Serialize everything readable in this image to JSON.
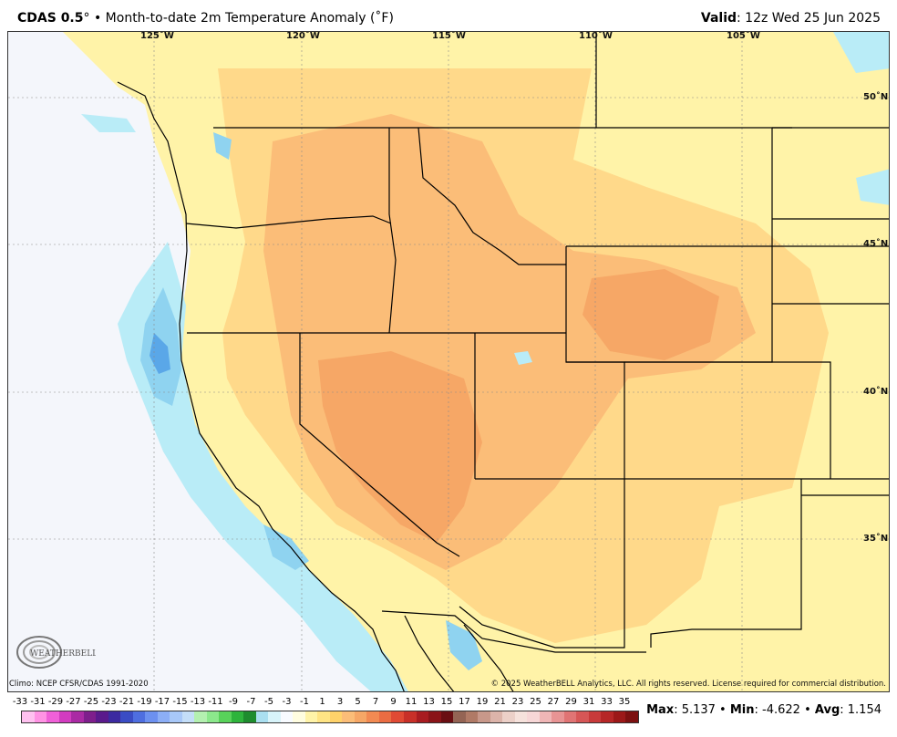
{
  "header": {
    "product": "CDAS 0.5",
    "degree_symbol": "°",
    "bullet": "•",
    "description": "Month-to-date 2m Temperature Anomaly (˚F)",
    "valid_label": "Valid",
    "valid_value": ": 12z Wed 25 Jun 2025"
  },
  "map": {
    "longitude_labels": [
      "125˚W",
      "120˚W",
      "115˚W",
      "110˚W",
      "105˚W"
    ],
    "latitude_labels": [
      "50˚N",
      "45˚N",
      "40˚N",
      "35˚N"
    ],
    "logo_text": "WEATHERBELL",
    "colors": {
      "background": "#f4f6fb",
      "warm_light": "#fff3a8",
      "warm_mid": "#ffd98a",
      "warm": "#fbbd78",
      "warm_strong": "#f6a766",
      "cool_light": "#b9ecf7",
      "cool_mid": "#8fd3f0",
      "cool": "#5aa7e8",
      "boundary": "#000000",
      "grid": "#8a8a8a"
    }
  },
  "footer": {
    "climo": "Climo: NCEP CFSR/CDAS 1991-2020",
    "copyright": "© 2025 WeatherBELL Analytics, LLC. All rights reserved. License required for commercial distribution."
  },
  "colorbar": {
    "labels": [
      "-33",
      "-31",
      "-29",
      "-27",
      "-25",
      "-23",
      "-21",
      "-19",
      "-17",
      "-15",
      "-13",
      "-11",
      "-9",
      "-7",
      "-5",
      "-3",
      "-1",
      "1",
      "3",
      "5",
      "7",
      "9",
      "11",
      "13",
      "15",
      "17",
      "19",
      "21",
      "23",
      "25",
      "27",
      "29",
      "31",
      "33",
      "35"
    ],
    "colors": [
      "#ffc1f0",
      "#ff93e4",
      "#f060d8",
      "#d23cc0",
      "#aa2aa4",
      "#7e1e8c",
      "#5a1a8c",
      "#3c2aa0",
      "#3a4cc4",
      "#4e6ee0",
      "#6c90f0",
      "#8caef6",
      "#a8c8f8",
      "#c4def8",
      "#b4f0b0",
      "#8ce88c",
      "#58d25a",
      "#2eb43c",
      "#1e8c2e",
      "#aadff0",
      "#d8f4fa",
      "#f8fbff",
      "#fffde0",
      "#fff3a8",
      "#ffe484",
      "#ffd26a",
      "#fbbd78",
      "#f6a766",
      "#f28a52",
      "#ea6c42",
      "#e04a34",
      "#c83028",
      "#a81c20",
      "#8a1418",
      "#6a0e12",
      "#946454",
      "#b07a66",
      "#c8988a",
      "#dcb4aa",
      "#ecd0c8",
      "#f6e2dc",
      "#f7d7d7",
      "#f0b6b6",
      "#e89494",
      "#e07474",
      "#d65656",
      "#c83a3a",
      "#b62626",
      "#9c1818",
      "#7c1010"
    ]
  },
  "stats": {
    "max_label": "Max",
    "max_value": ": 5.137",
    "min_label": "Min",
    "min_value": ": -4.622",
    "avg_label": "Avg",
    "avg_value": ": 1.154",
    "separator": " • "
  }
}
